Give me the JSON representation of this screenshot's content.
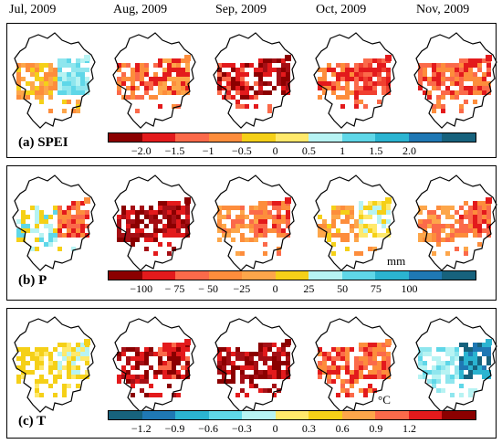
{
  "months": [
    "Jul, 2009",
    "Aug, 2009",
    "Sep, 2009",
    "Oct, 2009",
    "Nov, 2009"
  ],
  "panels": [
    {
      "label": "(a) SPEI",
      "unit": "",
      "ticks": [
        "−2.0",
        "−1.5",
        "−1",
        "−0.5",
        "0",
        "0.5",
        "1",
        "1.5",
        "2.0"
      ],
      "colors": [
        "#8b0000",
        "#e31a1c",
        "#fb6a4a",
        "#fd8d3c",
        "#f5d018",
        "#ffe96b",
        "#b7f3f3",
        "#5fd7e8",
        "#2bb4d1",
        "#1f78b4",
        "#17627d"
      ],
      "maps": [
        {
          "patch": [
            "#fd8d3c",
            "#f5d018",
            "#fda64a"
          ],
          "patch2": [
            "#b7f3f3",
            "#5fd7e8",
            "#8fe6ee"
          ]
        },
        {
          "patch": [
            "#e31a1c",
            "#fb6a4a",
            "#fd8d3c"
          ],
          "patch2": [
            "#fd8d3c",
            "#fda64a",
            "#e31a1c"
          ]
        },
        {
          "patch": [
            "#e31a1c",
            "#fb6a4a",
            "#8b0000"
          ],
          "patch2": [
            "#8b0000",
            "#a50f15",
            "#e31a1c"
          ]
        },
        {
          "patch": [
            "#e31a1c",
            "#fb6a4a",
            "#fd8d3c"
          ],
          "patch2": [
            "#e31a1c",
            "#fb6a4a",
            "#f04030"
          ]
        },
        {
          "patch": [
            "#e31a1c",
            "#fb6a4a",
            "#fd8d3c"
          ],
          "patch2": [
            "#e31a1c",
            "#fb6a4a",
            "#fd8d3c"
          ]
        }
      ]
    },
    {
      "label": "(b) P",
      "unit": "mm",
      "ticks": [
        "−100",
        "− 75",
        "− 50",
        "−25",
        "0",
        "25",
        "50",
        "75",
        "100"
      ],
      "colors": [
        "#8b0000",
        "#e31a1c",
        "#fb6a4a",
        "#fd8d3c",
        "#fda64a",
        "#f5d018",
        "#b7f3f3",
        "#5fd7e8",
        "#2bb4d1",
        "#1f78b4",
        "#17627d"
      ],
      "maps": [
        {
          "patch": [
            "#b7f3f3",
            "#5fd7e8",
            "#f5d018"
          ],
          "patch2": [
            "#fd8d3c",
            "#e31a1c",
            "#fb6a4a"
          ]
        },
        {
          "patch": [
            "#8b0000",
            "#a50f15",
            "#e31a1c"
          ],
          "patch2": [
            "#8b0000",
            "#e31a1c",
            "#a50f15"
          ]
        },
        {
          "patch": [
            "#fd8d3c",
            "#fb6a4a",
            "#fda64a"
          ],
          "patch2": [
            "#e31a1c",
            "#fb6a4a",
            "#fd8d3c"
          ]
        },
        {
          "patch": [
            "#fda64a",
            "#f5d018",
            "#fd8d3c"
          ],
          "patch2": [
            "#f5d018",
            "#ffe96b",
            "#b7f3f3"
          ]
        },
        {
          "patch": [
            "#fd8d3c",
            "#fda64a",
            "#fb6a4a"
          ],
          "patch2": [
            "#e31a1c",
            "#fb6a4a",
            "#fd8d3c"
          ]
        }
      ]
    },
    {
      "label": "(c) T",
      "unit": "°C",
      "ticks": [
        "−1.2",
        "−0.9",
        "−0.6",
        "−0.3",
        "0",
        "0.3",
        "0.6",
        "0.9",
        "1.2"
      ],
      "colors": [
        "#17627d",
        "#1f78b4",
        "#2bb4d1",
        "#5fd7e8",
        "#b7f3f3",
        "#ffe96b",
        "#f5d018",
        "#fda64a",
        "#fb6a4a",
        "#e31a1c",
        "#8b0000"
      ],
      "maps": [
        {
          "patch": [
            "#f5d018",
            "#ffe96b",
            "#f5d018"
          ],
          "patch2": [
            "#f5d018",
            "#ffe96b",
            "#b7f3f3"
          ]
        },
        {
          "patch": [
            "#8b0000",
            "#a50f15",
            "#e31a1c"
          ],
          "patch2": [
            "#e31a1c",
            "#fb6a4a",
            "#8b0000"
          ]
        },
        {
          "patch": [
            "#8b0000",
            "#a50f15",
            "#e31a1c"
          ],
          "patch2": [
            "#8b0000",
            "#a50f15",
            "#e31a1c"
          ]
        },
        {
          "patch": [
            "#e31a1c",
            "#fb6a4a",
            "#fd8d3c"
          ],
          "patch2": [
            "#fd8d3c",
            "#e31a1c",
            "#fb6a4a"
          ]
        },
        {
          "patch": [
            "#b7f3f3",
            "#5fd7e8",
            "#8fe6ee"
          ],
          "patch2": [
            "#2bb4d1",
            "#1f78b4",
            "#17627d"
          ]
        }
      ]
    }
  ]
}
